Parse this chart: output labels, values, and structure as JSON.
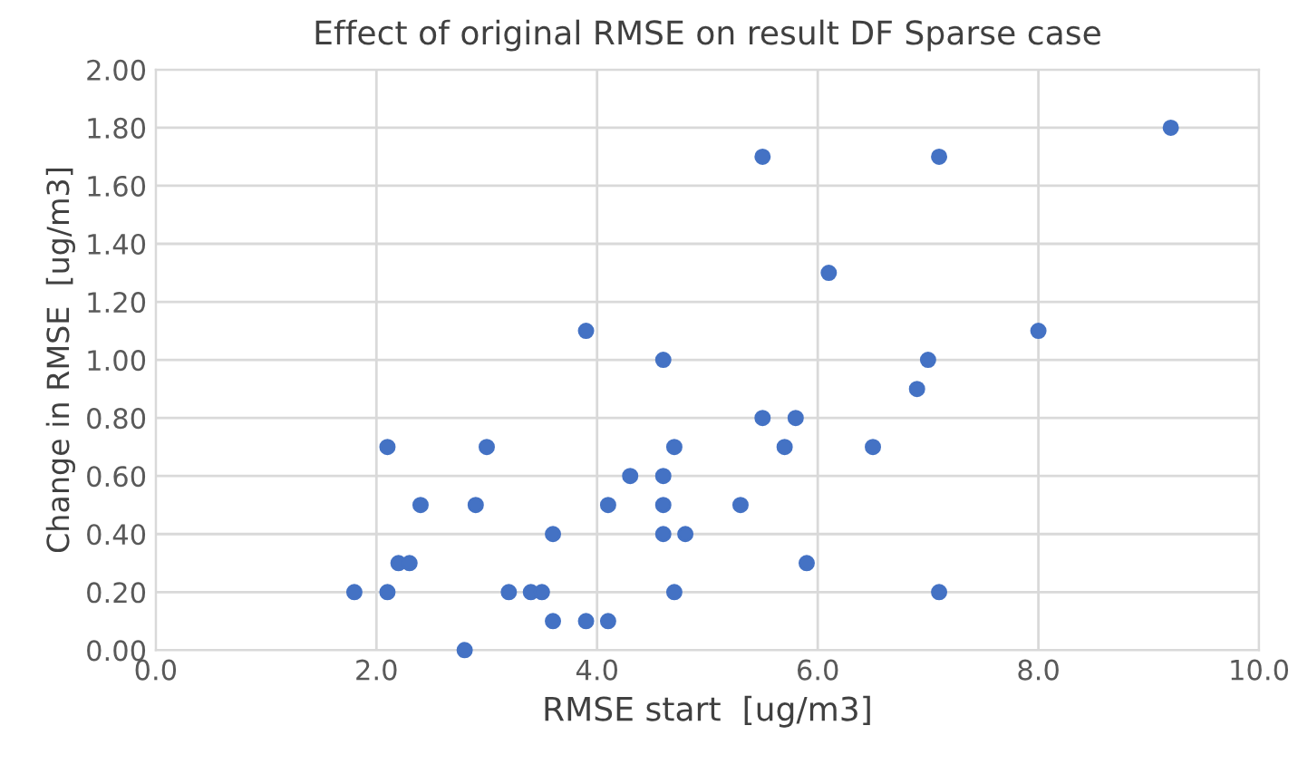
{
  "chart_data": {
    "type": "scatter",
    "title": "Effect of original RMSE on result DF Sparse case",
    "xlabel": "RMSE start  [ug/m3]",
    "ylabel": "Change in RMSE  [ug/m3]",
    "x": [
      1.8,
      2.1,
      2.1,
      2.2,
      2.3,
      2.4,
      2.8,
      2.9,
      3.0,
      3.2,
      3.4,
      3.5,
      3.6,
      3.6,
      3.9,
      3.9,
      4.1,
      4.1,
      4.3,
      4.6,
      4.6,
      4.6,
      4.6,
      4.7,
      4.7,
      4.8,
      5.3,
      5.5,
      5.5,
      5.7,
      5.8,
      5.9,
      6.1,
      6.5,
      6.9,
      7.0,
      7.1,
      7.1,
      8.0,
      9.2
    ],
    "values": [
      0.2,
      0.7,
      0.2,
      0.3,
      0.3,
      0.5,
      0.0,
      0.5,
      0.7,
      0.2,
      0.2,
      0.2,
      0.4,
      0.1,
      1.1,
      0.1,
      0.5,
      0.1,
      0.6,
      1.0,
      0.6,
      0.5,
      0.4,
      0.7,
      0.2,
      0.4,
      0.5,
      1.7,
      0.8,
      0.7,
      0.8,
      0.3,
      1.3,
      0.7,
      0.9,
      1.0,
      1.7,
      0.2,
      1.1,
      1.8
    ],
    "color": "#4472c4",
    "marker": "circle",
    "grid": true,
    "xlim": [
      0,
      10
    ],
    "xticks": [
      {
        "value": 0,
        "label": "0.0"
      },
      {
        "value": 2,
        "label": "2.0"
      },
      {
        "value": 4,
        "label": "4.0"
      },
      {
        "value": 6,
        "label": "6.0"
      },
      {
        "value": 8,
        "label": "8.0"
      },
      {
        "value": 10,
        "label": "10.0"
      }
    ],
    "ylim": [
      0,
      2
    ],
    "yticks": [
      {
        "value": 0,
        "label": "0.00"
      },
      {
        "value": 0.2,
        "label": "0.20"
      },
      {
        "value": 0.4,
        "label": "0.40"
      },
      {
        "value": 0.6,
        "label": "0.60"
      },
      {
        "value": 0.8,
        "label": "0.80"
      },
      {
        "value": 1.0,
        "label": "1.00"
      },
      {
        "value": 1.2,
        "label": "1.20"
      },
      {
        "value": 1.4,
        "label": "1.40"
      },
      {
        "value": 1.6,
        "label": "1.60"
      },
      {
        "value": 1.8,
        "label": "1.80"
      },
      {
        "value": 2.0,
        "label": "2.00"
      }
    ]
  }
}
